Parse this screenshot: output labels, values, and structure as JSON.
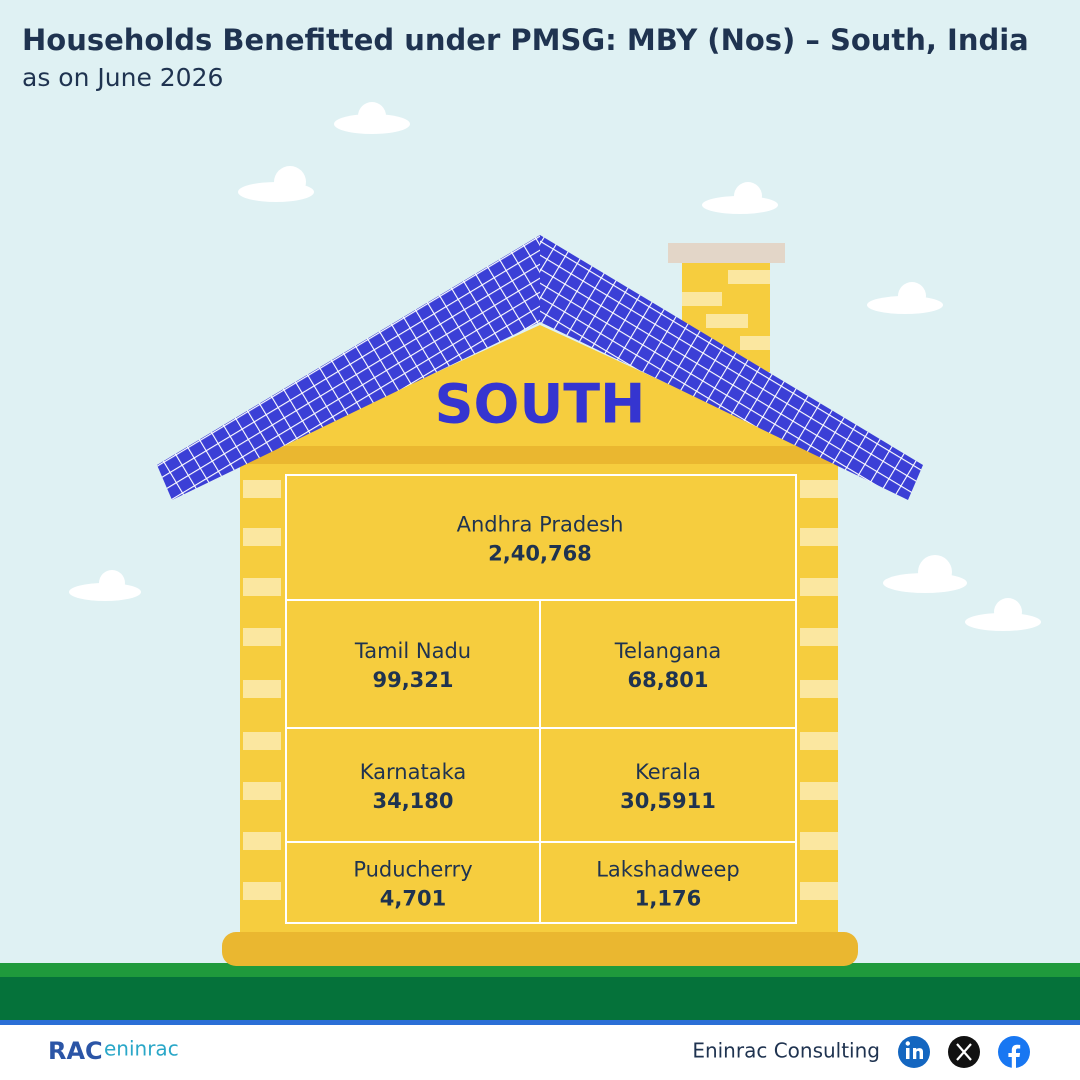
{
  "header": {
    "title": "Households Benefitted under PMSG: MBY (Nos) – South, India",
    "subtitle": "as on June 2026"
  },
  "house": {
    "label": "SOUTH",
    "cells": [
      {
        "name": "Andhra Pradesh",
        "value": "2,40,768"
      },
      {
        "name": "Tamil Nadu",
        "value": "99,321"
      },
      {
        "name": "Telangana",
        "value": "68,801"
      },
      {
        "name": "Karnataka",
        "value": "34,180"
      },
      {
        "name": "Kerala",
        "value": "30,5911"
      },
      {
        "name": "Puducherry",
        "value": "4,701"
      },
      {
        "name": "Lakshadweep",
        "value": "1,176"
      }
    ]
  },
  "footer": {
    "logo": {
      "mark": "RAC",
      "text": "eninrac"
    },
    "brand": "Eninrac Consulting"
  }
}
